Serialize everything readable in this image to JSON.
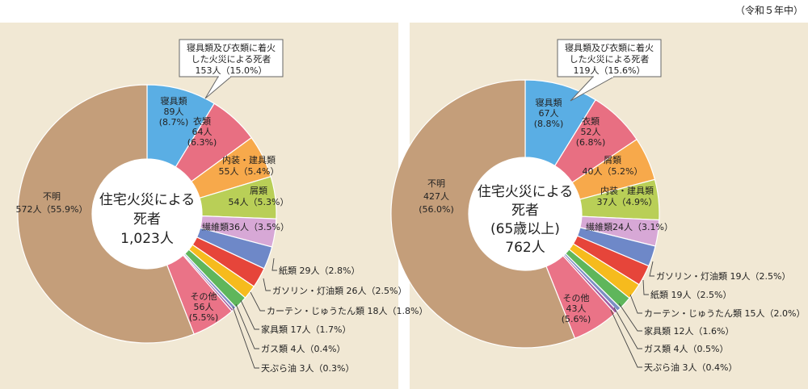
{
  "era_note": "（令和５年中）",
  "colors": {
    "panel_bg": "#f1e8d4",
    "line": "#555555"
  },
  "chart_data": [
    {
      "type": "pie",
      "center_label": [
        "住宅火災による",
        "死者",
        "1,023人"
      ],
      "callout": [
        "寝具類及び衣類に着火",
        "した火災による死者",
        "153人（15.0%）"
      ],
      "slices": [
        {
          "name": "寝具類",
          "value": 89,
          "percent": 8.7,
          "label_lines": [
            "寝具類",
            "89人",
            "(8.7%)"
          ],
          "color": "#5aaee4"
        },
        {
          "name": "衣類",
          "value": 64,
          "percent": 6.3,
          "label_lines": [
            "衣類",
            "64人",
            "(6.3%)"
          ],
          "color": "#e86f82"
        },
        {
          "name": "内装・建具類",
          "value": 55,
          "percent": 5.4,
          "label_lines": [
            "内装・建具類",
            "55人（5.4%）"
          ],
          "color": "#f7a94b"
        },
        {
          "name": "屑類",
          "value": 54,
          "percent": 5.3,
          "label_lines": [
            "屑類",
            "54人（5.3%）"
          ],
          "color": "#b9cf57"
        },
        {
          "name": "繊維類",
          "value": 36,
          "percent": 3.5,
          "label_lines": [
            "繊維類36人（3.5%）"
          ],
          "color": "#d7a8d6"
        },
        {
          "name": "紙類",
          "value": 29,
          "percent": 2.8,
          "label_lines": [
            "紙類 29人（2.8%）"
          ],
          "color": "#6e88c8"
        },
        {
          "name": "ガソリン・灯油類",
          "value": 26,
          "percent": 2.5,
          "label_lines": [
            "ガソリン・灯油類 26人（2.5%）"
          ],
          "color": "#e6453a"
        },
        {
          "name": "カーテン・じゅうたん類",
          "value": 18,
          "percent": 1.8,
          "label_lines": [
            "カーテン・じゅうたん類 18人（1.8%）"
          ],
          "color": "#f6bb1d"
        },
        {
          "name": "家具類",
          "value": 17,
          "percent": 1.7,
          "label_lines": [
            "家具類 17人（1.7%）"
          ],
          "color": "#5fb65b"
        },
        {
          "name": "ガス類",
          "value": 4,
          "percent": 0.4,
          "label_lines": [
            "ガス類 4人（0.4%）"
          ],
          "color": "#7c8fc4"
        },
        {
          "name": "天ぷら油",
          "value": 3,
          "percent": 0.3,
          "label_lines": [
            "天ぷら油 3人（0.3%）"
          ],
          "color": "#a25aa3"
        },
        {
          "name": "その他",
          "value": 56,
          "percent": 5.5,
          "label_lines": [
            "その他",
            "56人",
            "(5.5%)"
          ],
          "color": "#ea7387"
        },
        {
          "name": "不明",
          "value": 572,
          "percent": 55.9,
          "label_lines": [
            "不明",
            "572人（55.9%）"
          ],
          "color": "#c49e7a"
        }
      ]
    },
    {
      "type": "pie",
      "center_label": [
        "住宅火災による",
        "死者",
        "(65歳以上)",
        "762人"
      ],
      "callout": [
        "寝具類及び衣類に着火",
        "した火災による死者",
        "119人（15.6%）"
      ],
      "slices": [
        {
          "name": "寝具類",
          "value": 67,
          "percent": 8.8,
          "label_lines": [
            "寝具類",
            "67人",
            "(8.8%)"
          ],
          "color": "#5aaee4"
        },
        {
          "name": "衣類",
          "value": 52,
          "percent": 6.8,
          "label_lines": [
            "衣類",
            "52人",
            "(6.8%)"
          ],
          "color": "#e86f82"
        },
        {
          "name": "屑類",
          "value": 40,
          "percent": 5.2,
          "label_lines": [
            "屑類",
            "40人（5.2%）"
          ],
          "color": "#f7a94b"
        },
        {
          "name": "内装・建具類",
          "value": 37,
          "percent": 4.9,
          "label_lines": [
            "内装・建具類",
            "37人（4.9%）"
          ],
          "color": "#b9cf57"
        },
        {
          "name": "繊維類",
          "value": 24,
          "percent": 3.1,
          "label_lines": [
            "繊維類24人（3.1%）"
          ],
          "color": "#d7a8d6"
        },
        {
          "name": "ガソリン・灯油類",
          "value": 19,
          "percent": 2.5,
          "label_lines": [
            "ガソリン・灯油類 19人（2.5%）"
          ],
          "color": "#6e88c8"
        },
        {
          "name": "紙類",
          "value": 19,
          "percent": 2.5,
          "label_lines": [
            "紙類 19人（2.5%）"
          ],
          "color": "#e6453a"
        },
        {
          "name": "カーテン・じゅうたん類",
          "value": 15,
          "percent": 2.0,
          "label_lines": [
            "カーテン・じゅうたん類 15人（2.0%）"
          ],
          "color": "#f6bb1d"
        },
        {
          "name": "家具類",
          "value": 12,
          "percent": 1.6,
          "label_lines": [
            "家具類 12人（1.6%）"
          ],
          "color": "#5fb65b"
        },
        {
          "name": "ガス類",
          "value": 4,
          "percent": 0.5,
          "label_lines": [
            "ガス類 4人（0.5%）"
          ],
          "color": "#7c8fc4"
        },
        {
          "name": "天ぷら油",
          "value": 3,
          "percent": 0.4,
          "label_lines": [
            "天ぷら油 3人（0.4%）"
          ],
          "color": "#a25aa3"
        },
        {
          "name": "その他",
          "value": 43,
          "percent": 5.6,
          "label_lines": [
            "その他",
            "43人",
            "(5.6%)"
          ],
          "color": "#ea7387"
        },
        {
          "name": "不明",
          "value": 427,
          "percent": 56.0,
          "label_lines": [
            "不明",
            "427人",
            "(56.0%)"
          ],
          "color": "#c49e7a"
        }
      ]
    }
  ]
}
